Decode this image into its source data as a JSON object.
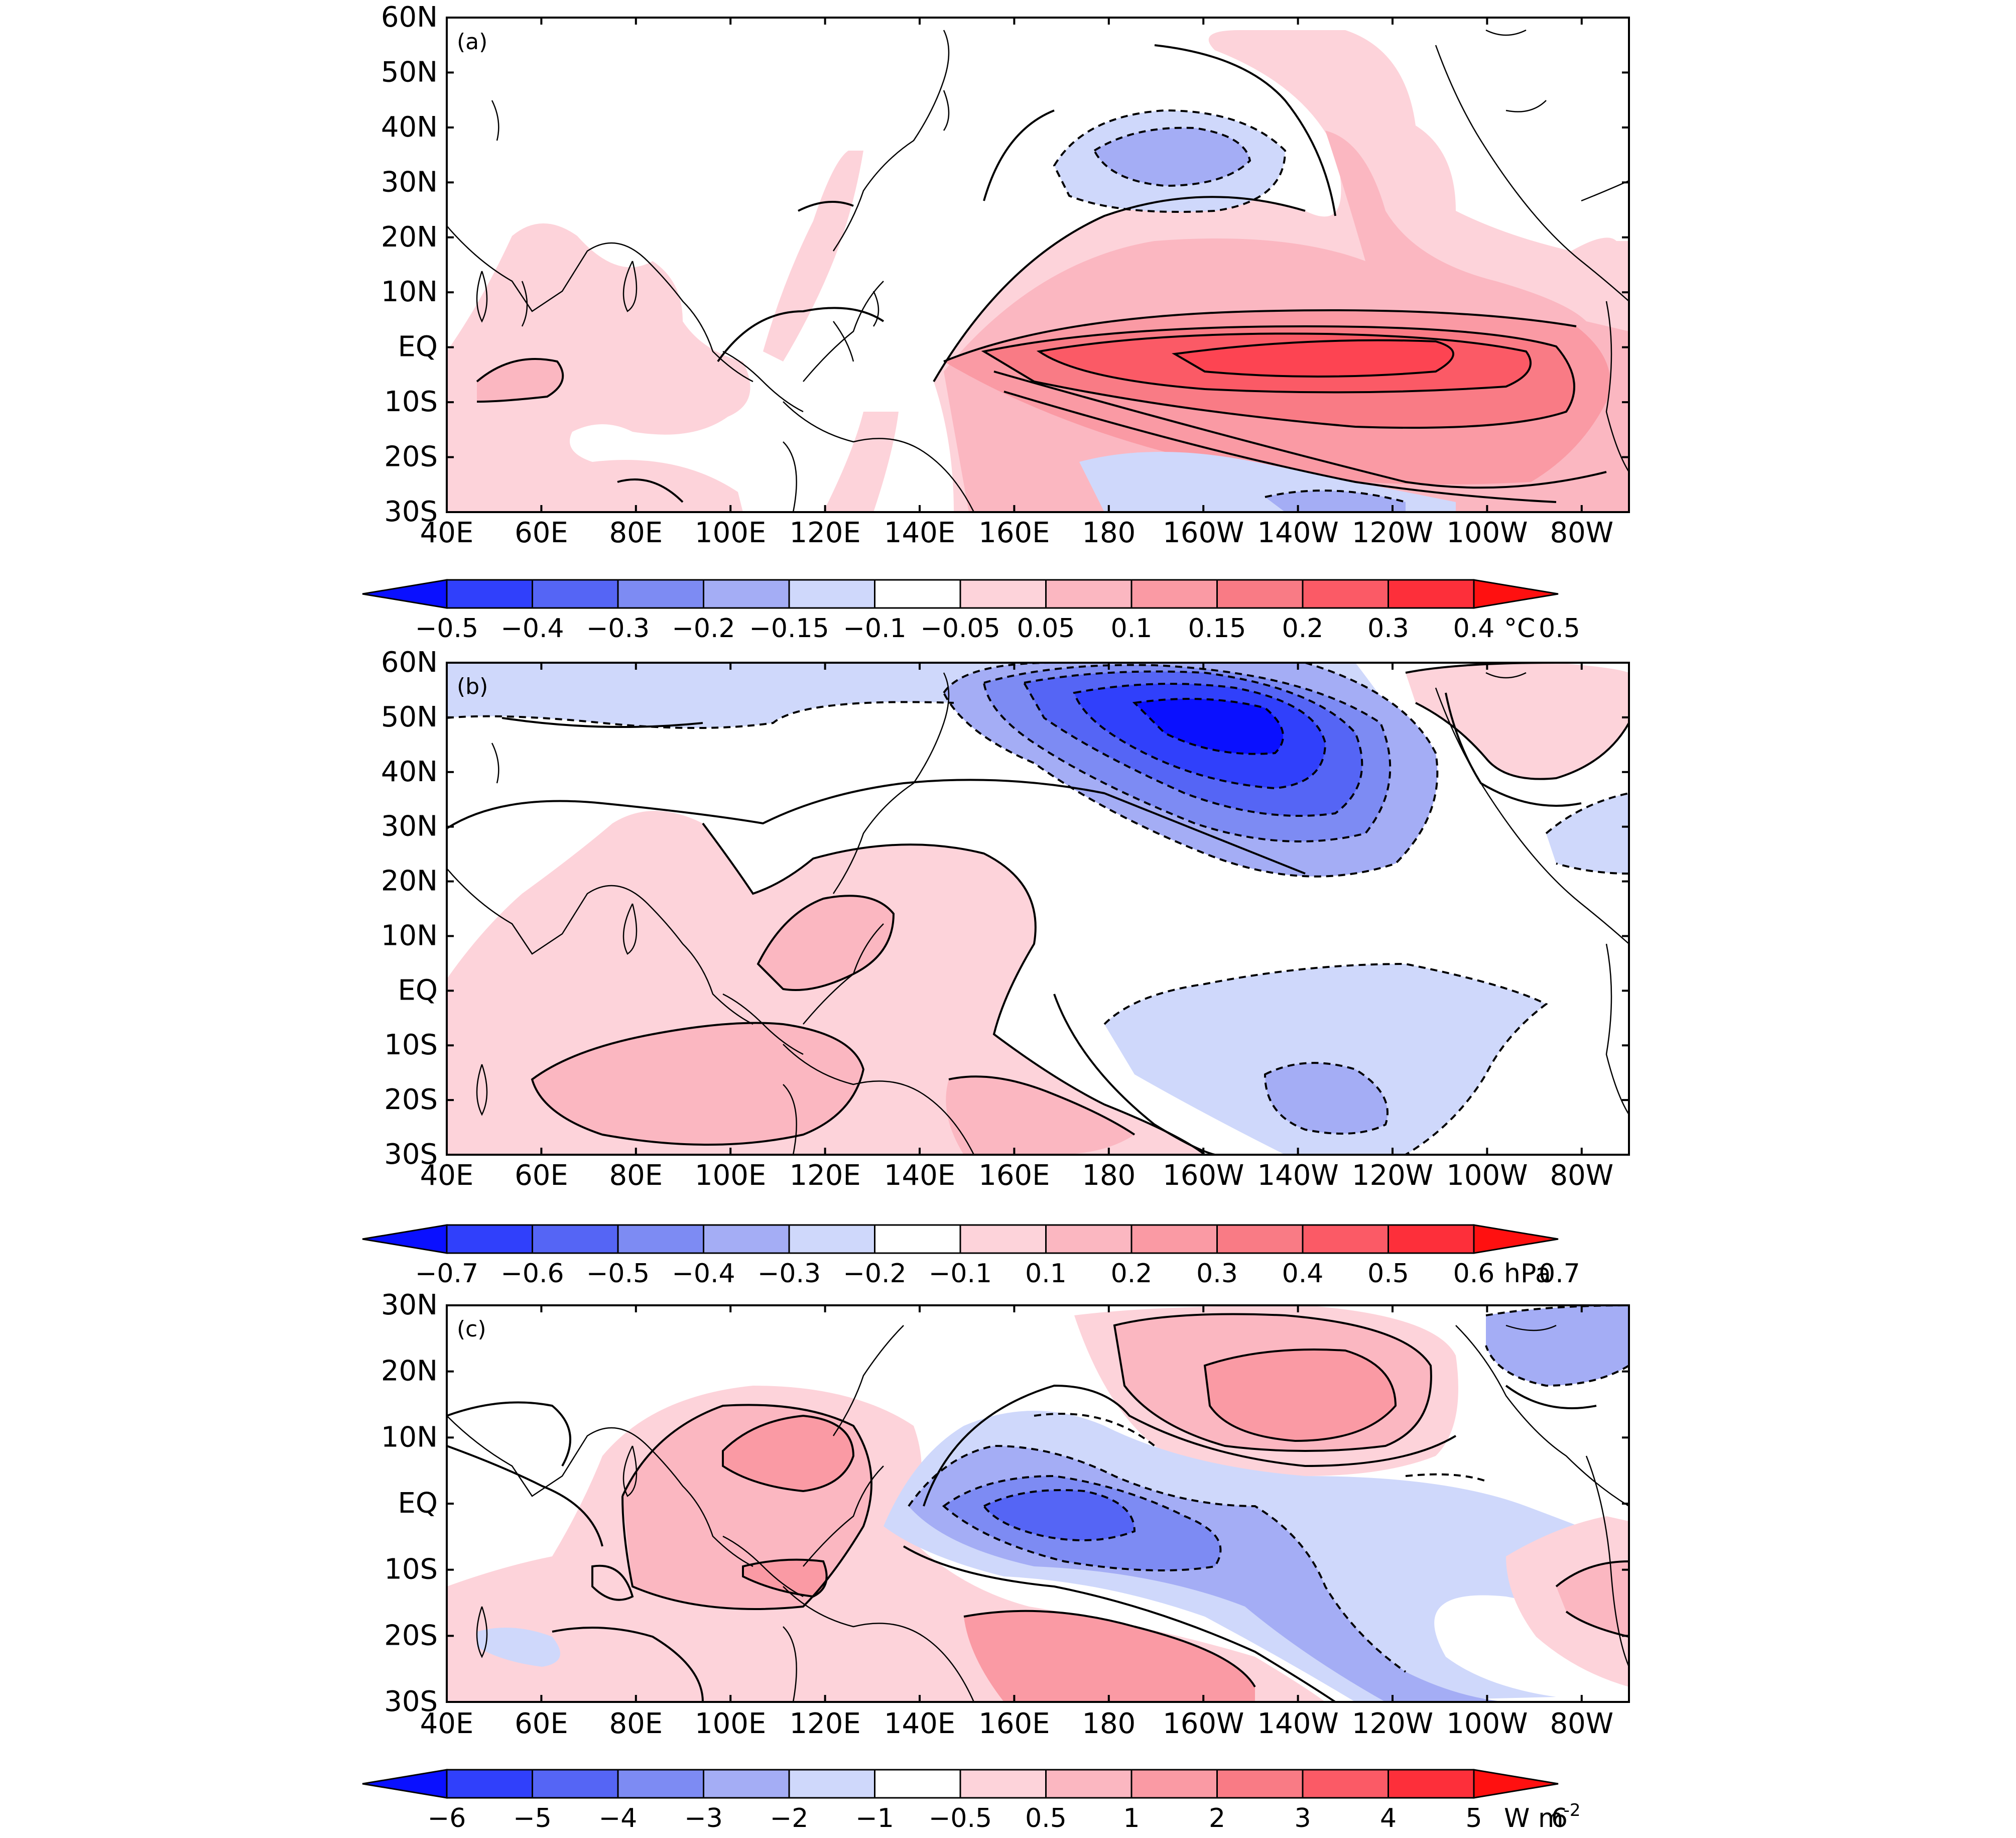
{
  "panels": [
    {
      "id": "a",
      "tag": "(a)",
      "lat_labels": [
        "60N",
        "50N",
        "40N",
        "30N",
        "20N",
        "10N",
        "EQ",
        "10S",
        "20S",
        "30S"
      ],
      "lon_labels": [
        "40E",
        "60E",
        "80E",
        "100E",
        "120E",
        "140E",
        "160E",
        "180",
        "160W",
        "140W",
        "120W",
        "100W",
        "80W"
      ],
      "colorbar": {
        "labels": [
          "−0.5",
          "−0.4",
          "−0.3",
          "−0.2",
          "−0.15",
          "−0.1",
          "−0.05",
          "0.05",
          "0.1",
          "0.15",
          "0.2",
          "0.3",
          "0.4",
          "0.5"
        ],
        "unit": "°C"
      }
    },
    {
      "id": "b",
      "tag": "(b)",
      "lat_labels": [
        "60N",
        "50N",
        "40N",
        "30N",
        "20N",
        "10N",
        "EQ",
        "10S",
        "20S",
        "30S"
      ],
      "lon_labels": [
        "40E",
        "60E",
        "80E",
        "100E",
        "120E",
        "140E",
        "160E",
        "180",
        "160W",
        "140W",
        "120W",
        "100W",
        "80W"
      ],
      "colorbar": {
        "labels": [
          "−0.7",
          "−0.6",
          "−0.5",
          "−0.4",
          "−0.3",
          "−0.2",
          "−0.1",
          "0.1",
          "0.2",
          "0.3",
          "0.4",
          "0.5",
          "0.6",
          "0.7"
        ],
        "unit": "hPa"
      }
    },
    {
      "id": "c",
      "tag": "(c)",
      "lat_labels": [
        "30N",
        "20N",
        "10N",
        "EQ",
        "10S",
        "20S",
        "30S"
      ],
      "lon_labels": [
        "40E",
        "60E",
        "80E",
        "100E",
        "120E",
        "140E",
        "160E",
        "180",
        "160W",
        "140W",
        "120W",
        "100W",
        "80W"
      ],
      "colorbar": {
        "labels": [
          "−6",
          "−5",
          "−4",
          "−3",
          "−2",
          "−1",
          "−0.5",
          "0.5",
          "1",
          "2",
          "3",
          "4",
          "5",
          "6"
        ],
        "unit": "W m",
        "unit_sup": "-2"
      }
    }
  ],
  "colors": {
    "colorbar_fills": [
      "#0a10ff",
      "#3040fb",
      "#5565f5",
      "#7d8bf3",
      "#a4adf5",
      "#cfd8fb",
      "#ffffff",
      "#fdd3da",
      "#fbb7c1",
      "#fa9aa4",
      "#f97b85",
      "#fb5a66",
      "#fd2f3a",
      "#ff1010"
    ]
  }
}
